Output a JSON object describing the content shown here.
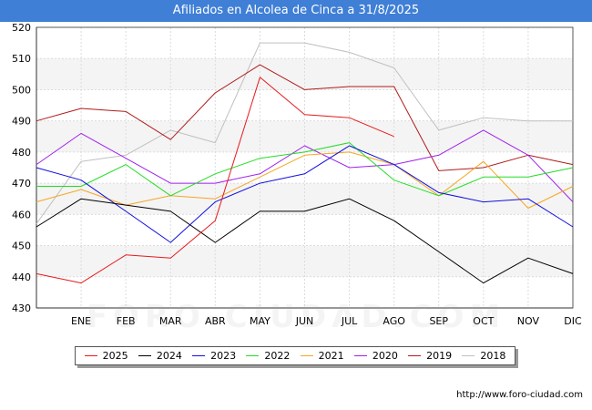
{
  "title": "Afiliados en Alcolea de Cinca a 31/8/2025",
  "footer_url": "http://www.foro-ciudad.com",
  "watermark": "FORO-CIUDAD.COM",
  "chart_data": {
    "type": "line",
    "title": "Afiliados en Alcolea de Cinca a 31/8/2025",
    "categories": [
      "",
      "ENE",
      "FEB",
      "MAR",
      "ABR",
      "MAY",
      "JUN",
      "JUL",
      "AGO",
      "SEP",
      "OCT",
      "NOV",
      "DIC"
    ],
    "ylim": [
      430,
      520
    ],
    "yticks": [
      430,
      440,
      450,
      460,
      470,
      480,
      490,
      500,
      510,
      520
    ],
    "grid": true,
    "legend_position": "bottom",
    "series": [
      {
        "name": "2025",
        "color": "#e8191b",
        "values": [
          441,
          438,
          447,
          446,
          458,
          504,
          492,
          491,
          485,
          null,
          null,
          null,
          null
        ]
      },
      {
        "name": "2024",
        "color": "#000000",
        "values": [
          456,
          465,
          463,
          461,
          451,
          461,
          461,
          465,
          458,
          448,
          438,
          446,
          441
        ]
      },
      {
        "name": "2023",
        "color": "#1010e0",
        "values": [
          475,
          471,
          461,
          451,
          464,
          470,
          473,
          482,
          476,
          467,
          464,
          465,
          456
        ]
      },
      {
        "name": "2022",
        "color": "#22dd22",
        "values": [
          469,
          469,
          476,
          466,
          473,
          478,
          480,
          483,
          471,
          466,
          472,
          472,
          475
        ]
      },
      {
        "name": "2021",
        "color": "#f5a623",
        "values": [
          464,
          468,
          463,
          466,
          465,
          472,
          479,
          480,
          476,
          466,
          477,
          462,
          469
        ]
      },
      {
        "name": "2020",
        "color": "#a020f0",
        "values": [
          476,
          486,
          478,
          470,
          470,
          473,
          482,
          475,
          476,
          479,
          487,
          479,
          464
        ]
      },
      {
        "name": "2019",
        "color": "#b01c1c",
        "values": [
          490,
          494,
          493,
          484,
          499,
          508,
          500,
          501,
          501,
          474,
          475,
          479,
          476
        ]
      },
      {
        "name": "2018",
        "color": "#c0c0c0",
        "values": [
          457,
          477,
          479,
          487,
          483,
          515,
          515,
          512,
          507,
          487,
          491,
          490,
          490
        ]
      }
    ]
  }
}
